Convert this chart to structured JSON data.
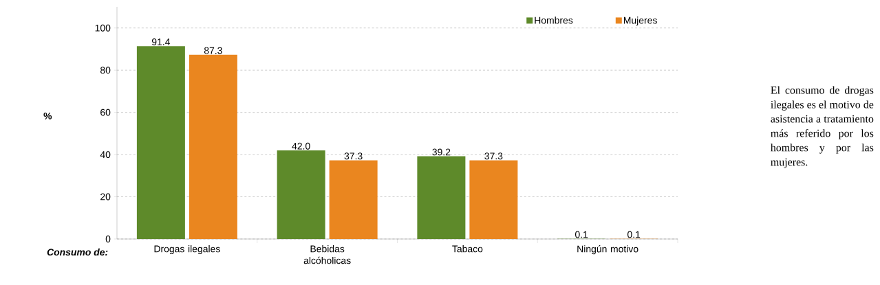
{
  "chart_data": {
    "type": "bar",
    "categories": [
      "Drogas ilegales",
      "Bebidas alcóholicas",
      "Tabaco",
      "Ningún motivo"
    ],
    "series": [
      {
        "name": "Hombres",
        "color": "#5e8a2a",
        "values": [
          91.4,
          42.0,
          39.2,
          0.1
        ],
        "value_labels": [
          "91.4",
          "42.0",
          "39.2",
          "0.1"
        ]
      },
      {
        "name": "Mujeres",
        "color": "#ea861f",
        "values": [
          87.3,
          37.3,
          37.3,
          0.1
        ],
        "value_labels": [
          "87.3",
          "37.3",
          "37.3",
          "0.1"
        ]
      }
    ],
    "ylabel": "%",
    "xlabel": "Consumo de:",
    "ylim": [
      0,
      110
    ],
    "yticks": [
      0,
      20,
      40,
      60,
      80,
      100
    ],
    "grid": "y",
    "legend": "top right",
    "annotations": [
      "El consumo de drogas ilegales es el motivo de asistencia a tratamiento más referido por los hombres y por las mujeres."
    ]
  }
}
